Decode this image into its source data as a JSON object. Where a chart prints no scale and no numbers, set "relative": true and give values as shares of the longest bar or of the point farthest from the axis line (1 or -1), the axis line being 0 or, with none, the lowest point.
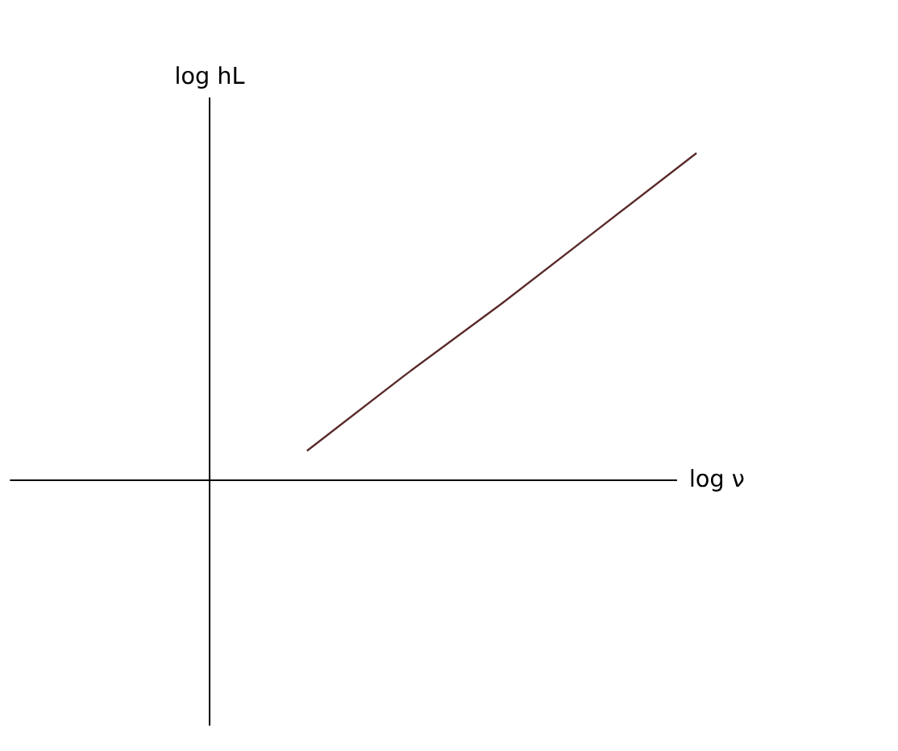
{
  "chart_data": {
    "type": "line",
    "relative": true,
    "xlabel": "log ν",
    "ylabel": "log hL",
    "categories": [
      null,
      null,
      null,
      null,
      null,
      null
    ],
    "series": [
      {
        "color": "#5a2a2a",
        "values": [
          null,
          0.09,
          0.32,
          0.54,
          0.77,
          1.0
        ]
      }
    ]
  }
}
